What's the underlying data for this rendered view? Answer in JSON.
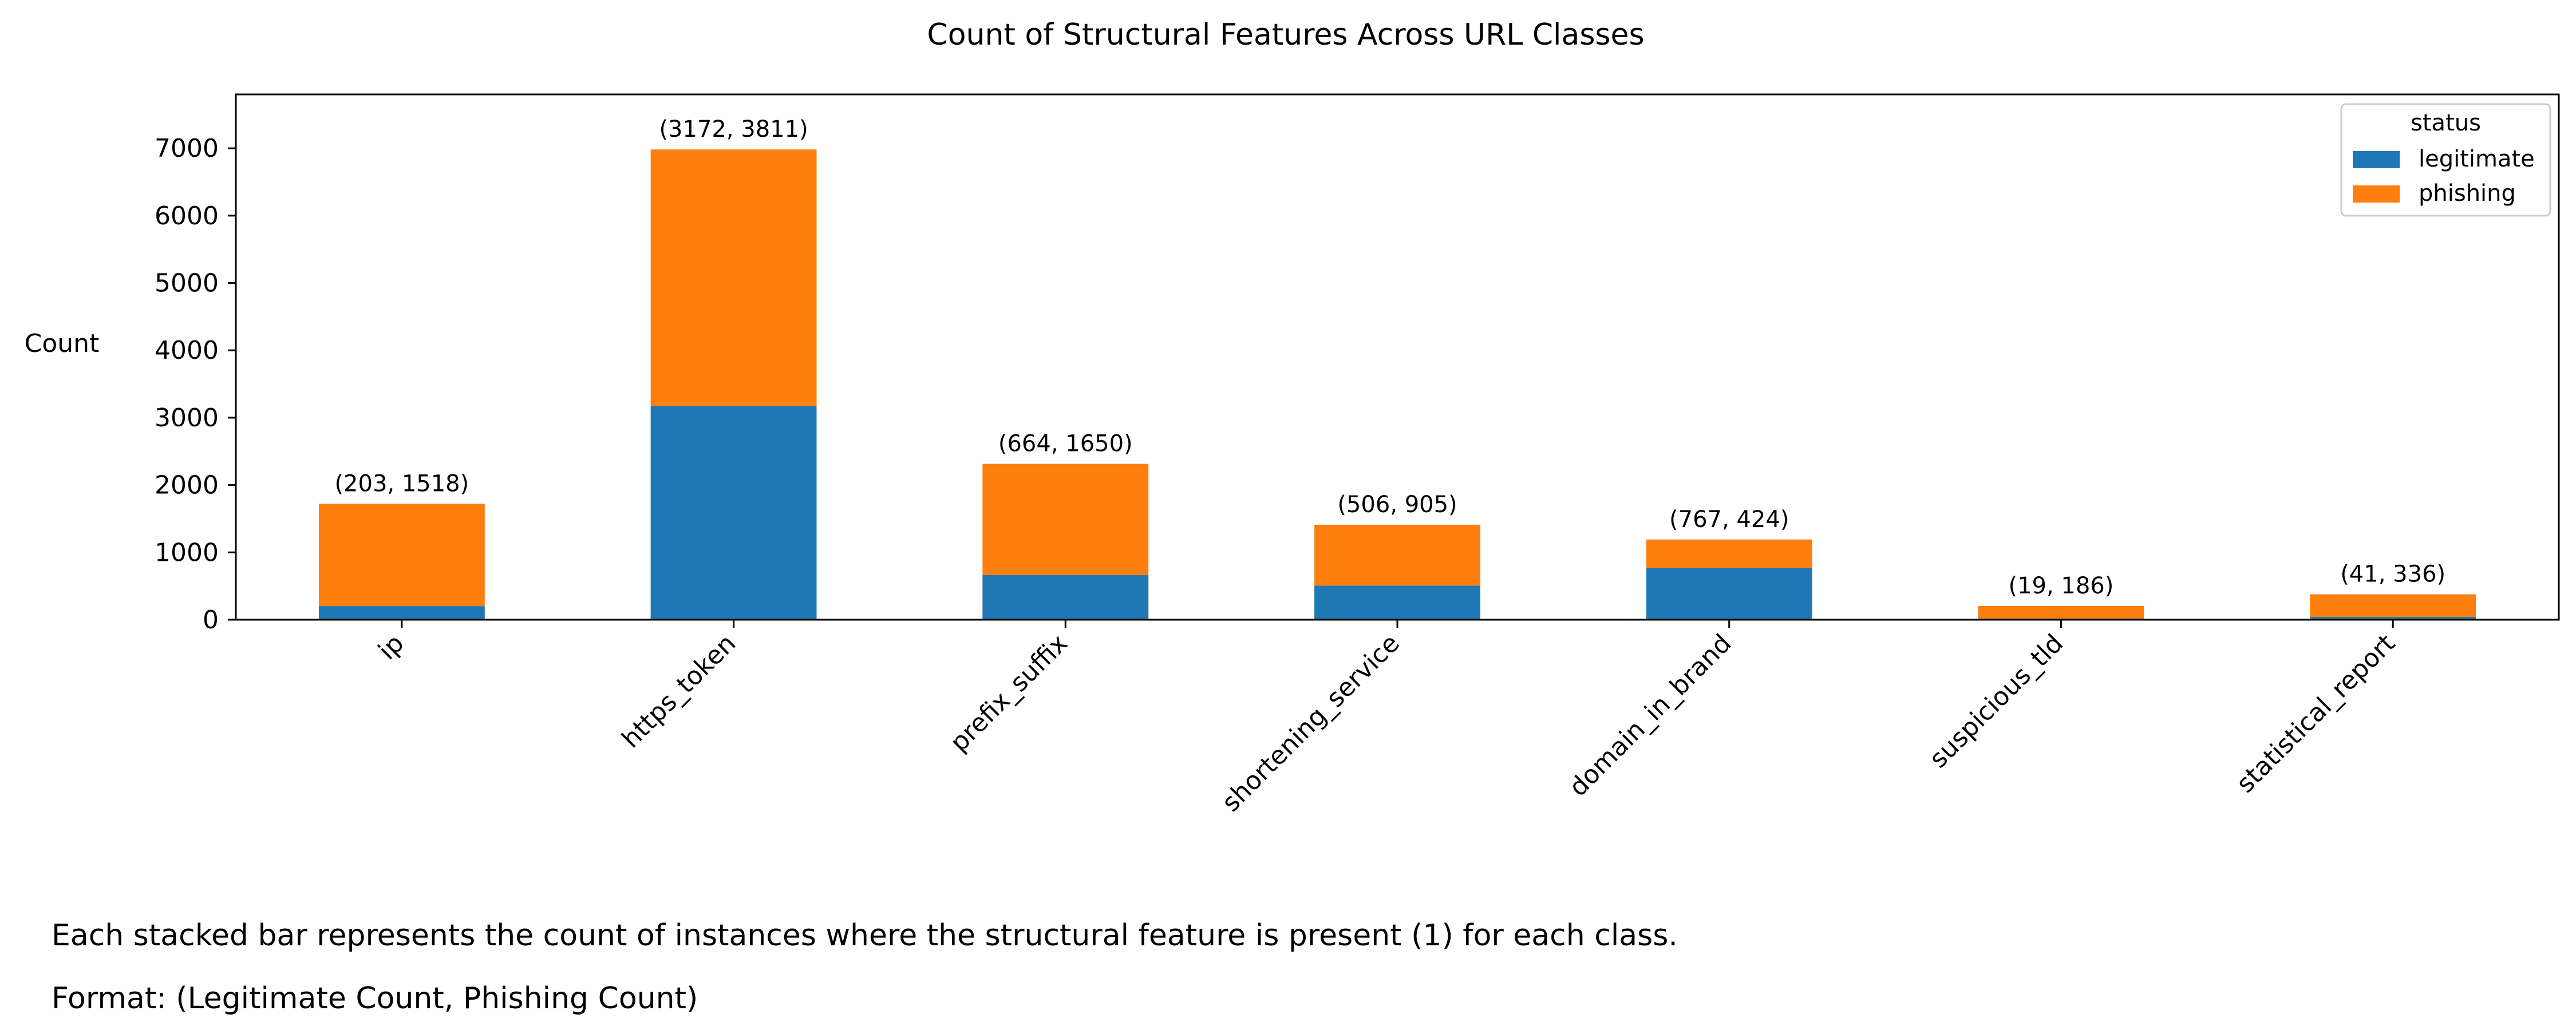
{
  "chart_data": {
    "type": "bar",
    "stacked": true,
    "title": "Count of Structural Features Across URL Classes",
    "xlabel": "",
    "ylabel": "Count",
    "categories": [
      "ip",
      "https_token",
      "prefix_suffix",
      "shortening_service",
      "domain_in_brand",
      "suspicious_tld",
      "statistical_report"
    ],
    "series": [
      {
        "name": "legitimate",
        "color": "#1f77b4",
        "values": [
          203,
          3172,
          664,
          506,
          767,
          19,
          41
        ]
      },
      {
        "name": "phishing",
        "color": "#ff7f0e",
        "values": [
          1518,
          3811,
          1650,
          905,
          424,
          186,
          336
        ]
      }
    ],
    "bar_labels": [
      "(203, 1518)",
      "(3172, 3811)",
      "(664, 1650)",
      "(506, 905)",
      "(767, 424)",
      "(19, 186)",
      "(41, 336)"
    ],
    "ylim": [
      0,
      7800
    ],
    "yticks": [
      0,
      1000,
      2000,
      3000,
      4000,
      5000,
      6000,
      7000
    ],
    "grid": false,
    "legend": {
      "title": "status",
      "position": "top-right"
    }
  },
  "notes": {
    "line1": "Each stacked bar represents the count of instances where the structural feature is present (1) for each class.",
    "line2": "Format: (Legitimate Count, Phishing Count)"
  }
}
